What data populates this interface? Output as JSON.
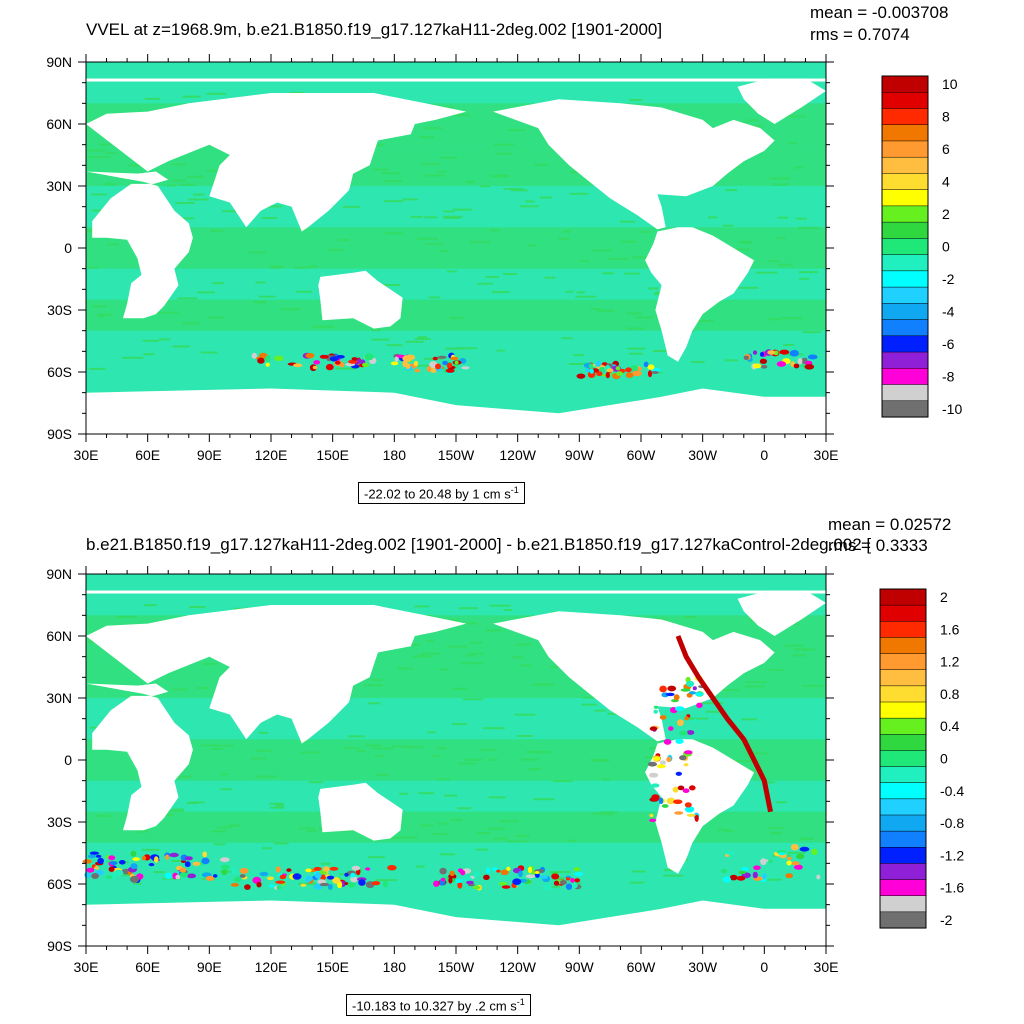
{
  "chart_data": [
    {
      "type": "heatmap",
      "title": "VVEL at z=1968.9m, b.e21.B1850.f19_g17.127kaH11-2deg.002 [1901-2000]",
      "mean_text": "mean = -0.003708",
      "rms_text": "rms = 0.7074",
      "range_text": "-22.02 to 20.48 by 1 cm s",
      "range_unit_exp": "-1",
      "x_ticks": [
        "30E",
        "60E",
        "90E",
        "120E",
        "150E",
        "180",
        "150W",
        "120W",
        "90W",
        "60W",
        "30W",
        "0",
        "30E"
      ],
      "y_ticks": [
        "90N",
        "60N",
        "30N",
        "0",
        "30S",
        "60S",
        "90S"
      ],
      "colorbar_labels": [
        "10",
        "8",
        "6",
        "4",
        "2",
        "0",
        "-2",
        "-4",
        "-6",
        "-8",
        "-10"
      ],
      "colorbar_levels": [
        10,
        8,
        6,
        4,
        2,
        0,
        -2,
        -4,
        -6,
        -8,
        -10
      ],
      "legend_position": "right"
    },
    {
      "type": "heatmap",
      "title": "b.e21.B1850.f19_g17.127kaH11-2deg.002 [1901-2000] - b.e21.B1850.f19_g17.127kaControl-2deg.002 [",
      "mean_text": "mean = 0.02572",
      "rms_text": "rms = 0.3333",
      "range_text": "-10.183 to 10.327 by .2 cm s",
      "range_unit_exp": "-1",
      "x_ticks": [
        "30E",
        "60E",
        "90E",
        "120E",
        "150E",
        "180",
        "150W",
        "120W",
        "90W",
        "60W",
        "30W",
        "0",
        "30E"
      ],
      "y_ticks": [
        "90N",
        "60N",
        "30N",
        "0",
        "30S",
        "60S",
        "90S"
      ],
      "colorbar_labels": [
        "2",
        "1.6",
        "1.2",
        "0.8",
        "0.4",
        "0",
        "-0.4",
        "-0.8",
        "-1.2",
        "-1.6",
        "-2"
      ],
      "colorbar_levels": [
        2,
        1.6,
        1.2,
        0.8,
        0.4,
        0,
        -0.4,
        -0.8,
        -1.2,
        -1.6,
        -2
      ],
      "legend_position": "right"
    }
  ],
  "colors": {
    "palette_top_to_bottom": [
      "#c00000",
      "#e00000",
      "#ff2a00",
      "#f07800",
      "#ff9a30",
      "#ffbe40",
      "#ffdd30",
      "#ffff00",
      "#66f020",
      "#30d840",
      "#20e878",
      "#20f0c0",
      "#00ffff",
      "#20d0ff",
      "#10a8f0",
      "#1080ff",
      "#0020ff",
      "#9020d8",
      "#ff00d8",
      "#d0d0d0",
      "#707070"
    ],
    "ocean": "#2ee6b0",
    "ocean_green": "#34dc60",
    "land": "#ffffff"
  }
}
